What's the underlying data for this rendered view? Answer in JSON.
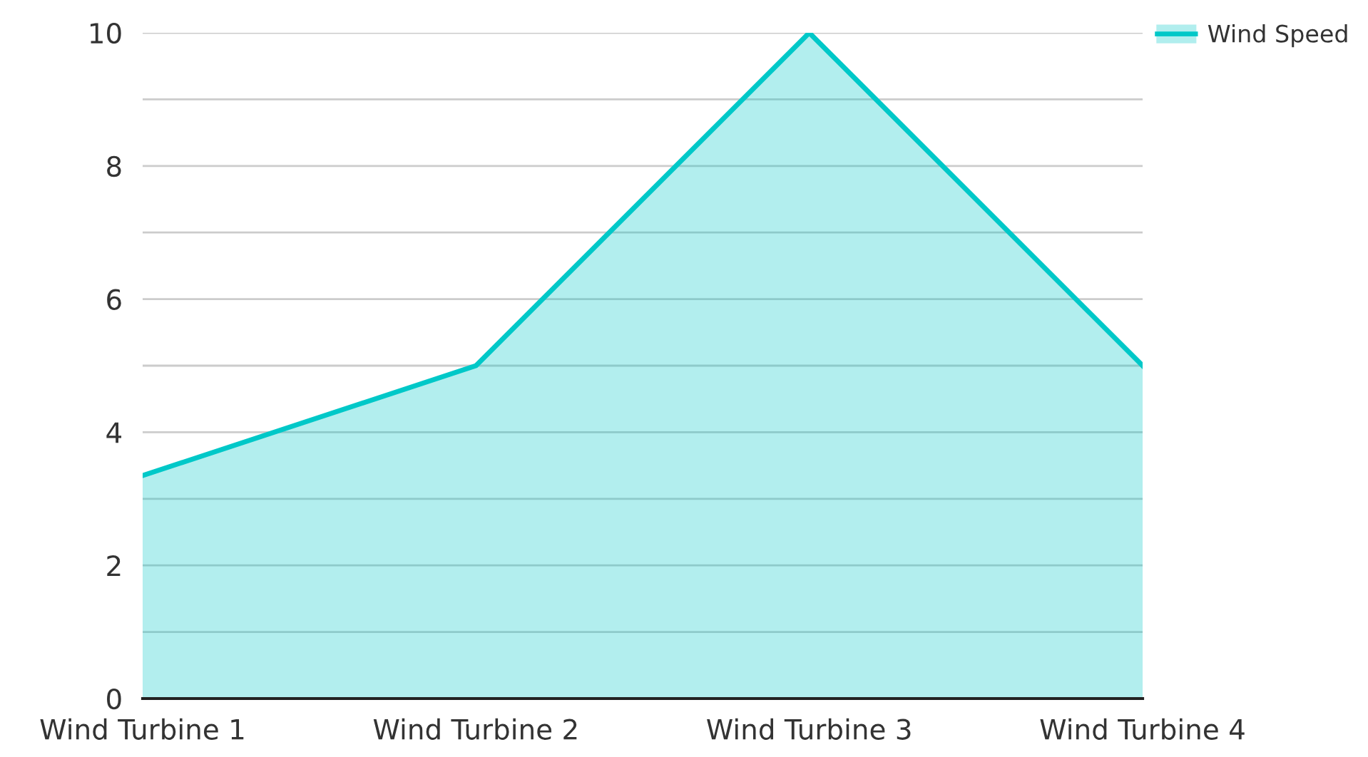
{
  "chart_data": {
    "type": "area",
    "categories": [
      "Wind Turbine 1",
      "Wind Turbine 2",
      "Wind Turbine 3",
      "Wind Turbine 4"
    ],
    "series": [
      {
        "name": "Wind Speed",
        "color": "#00c8c8",
        "values": [
          3.35,
          5,
          10,
          5
        ]
      }
    ],
    "ylim": [
      0,
      10
    ],
    "yticks": [
      0,
      {
        "value": 1,
        "label": null
      },
      2,
      {
        "value": 3,
        "label": null
      },
      4,
      {
        "value": 5,
        "label": null
      },
      6,
      {
        "value": 7,
        "label": null
      },
      8,
      {
        "value": 9,
        "label": null
      },
      10
    ],
    "grid": "y",
    "legend": "top right"
  }
}
